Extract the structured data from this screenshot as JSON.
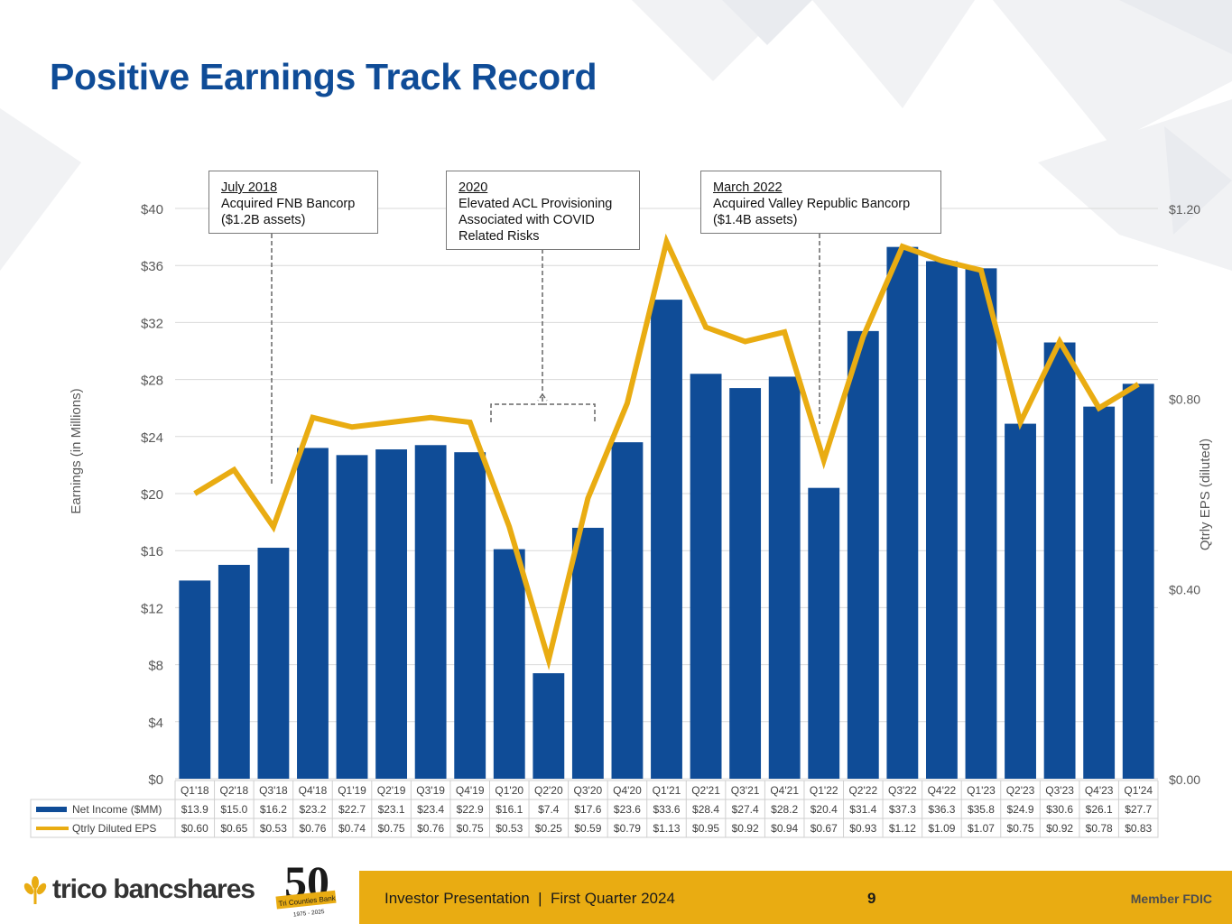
{
  "title": "Positive Earnings Track Record",
  "colors": {
    "bar": "#0f4c97",
    "line": "#e9ac12",
    "title": "#0f4c97",
    "footer": "#e9ac12"
  },
  "annotations": [
    {
      "heading": "July 2018",
      "lines": [
        "Acquired FNB Bancorp",
        "($1.2B assets)"
      ]
    },
    {
      "heading": "2020",
      "lines": [
        "Elevated ACL Provisioning",
        "Associated with COVID",
        "Related Risks"
      ]
    },
    {
      "heading": "March 2022",
      "lines": [
        "Acquired Valley Republic Bancorp",
        "($1.4B assets)"
      ]
    }
  ],
  "chart_data": {
    "type": "bar",
    "title": "Positive Earnings Track Record",
    "ylabel": "Earnings (in Millions)",
    "y2label": "Qtrly EPS (diluted)",
    "ylim": [
      0,
      40
    ],
    "y2lim": [
      0,
      1.2
    ],
    "yticks": [
      "$0",
      "$4",
      "$8",
      "$12",
      "$16",
      "$20",
      "$24",
      "$28",
      "$32",
      "$36",
      "$40"
    ],
    "y2ticks": [
      "$0.00",
      "$0.40",
      "$0.80",
      "$1.20"
    ],
    "categories": [
      "Q1'18",
      "Q2'18",
      "Q3'18",
      "Q4'18",
      "Q1'19",
      "Q2'19",
      "Q3'19",
      "Q4'19",
      "Q1'20",
      "Q2'20",
      "Q3'20",
      "Q4'20",
      "Q1'21",
      "Q2'21",
      "Q3'21",
      "Q4'21",
      "Q1'22",
      "Q2'22",
      "Q3'22",
      "Q4'22",
      "Q1'23",
      "Q2'23",
      "Q3'23",
      "Q4'23",
      "Q1'24"
    ],
    "series": [
      {
        "name": "Net Income ($MM)",
        "type": "bar",
        "axis": "left",
        "values": [
          13.9,
          15.0,
          16.2,
          23.2,
          22.7,
          23.1,
          23.4,
          22.9,
          16.1,
          7.4,
          17.6,
          23.6,
          33.6,
          28.4,
          27.4,
          28.2,
          20.4,
          31.4,
          37.3,
          36.3,
          35.8,
          24.9,
          30.6,
          26.1,
          27.7
        ],
        "labels": [
          "$13.9",
          "$15.0",
          "$16.2",
          "$23.2",
          "$22.7",
          "$23.1",
          "$23.4",
          "$22.9",
          "$16.1",
          "$7.4",
          "$17.6",
          "$23.6",
          "$33.6",
          "$28.4",
          "$27.4",
          "$28.2",
          "$20.4",
          "$31.4",
          "$37.3",
          "$36.3",
          "$35.8",
          "$24.9",
          "$30.6",
          "$26.1",
          "$27.7"
        ]
      },
      {
        "name": "Qtrly Diluted EPS",
        "type": "line",
        "axis": "right",
        "values": [
          0.6,
          0.65,
          0.53,
          0.76,
          0.74,
          0.75,
          0.76,
          0.75,
          0.53,
          0.25,
          0.59,
          0.79,
          1.13,
          0.95,
          0.92,
          0.94,
          0.67,
          0.93,
          1.12,
          1.09,
          1.07,
          0.75,
          0.92,
          0.78,
          0.83
        ],
        "labels": [
          "$0.60",
          "$0.65",
          "$0.53",
          "$0.76",
          "$0.74",
          "$0.75",
          "$0.76",
          "$0.75",
          "$0.53",
          "$0.25",
          "$0.59",
          "$0.79",
          "$1.13",
          "$0.95",
          "$0.92",
          "$0.94",
          "$0.67",
          "$0.93",
          "$1.12",
          "$1.09",
          "$1.07",
          "$0.75",
          "$0.92",
          "$0.78",
          "$0.83"
        ]
      }
    ]
  },
  "footer": {
    "brand": "trico bancshares",
    "anniversary": "50",
    "anniversary_sub": "Tri Counties Bank",
    "anniversary_years": "1975 - 2025",
    "presentation": "Investor Presentation  |  First Quarter 2024",
    "page": "9",
    "member": "Member FDIC"
  }
}
